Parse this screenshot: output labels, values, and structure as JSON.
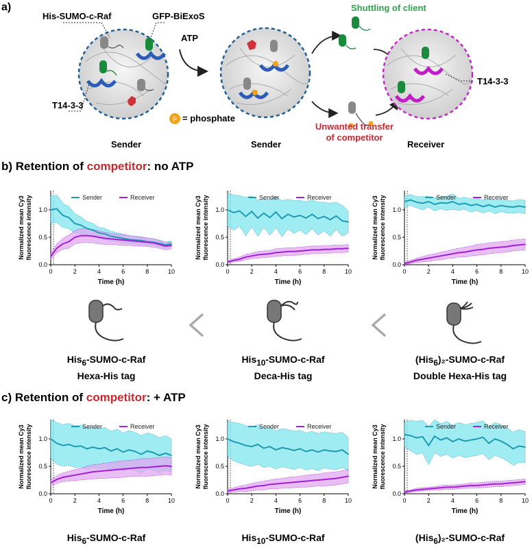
{
  "panel_a": {
    "letter": "a)",
    "label_his_sumo": "His-SUMO-c-Raf",
    "label_gfp": "GFP-BiExoS",
    "label_t1433_left": "T14-3-3",
    "label_atp": "ATP",
    "label_phosphate": "= phosphate",
    "phosphate_symbol": "P",
    "label_sender1": "Sender",
    "label_sender2": "Sender",
    "label_receiver": "Receiver",
    "label_shuttling": "Shuttling of client",
    "label_unwanted_1": "Unwanted transfer",
    "label_unwanted_2": "of competitor",
    "label_t1433_right": "T14-3-3",
    "colors": {
      "sender_ring": "#1f5f96",
      "receiver_ring": "#c528c9",
      "client": "#1a8a3c",
      "competitor": "#7a7a7a",
      "chain_purple": "#c11fc6"
    }
  },
  "section_b": {
    "letter": "b)",
    "title_prefix": "Retention of ",
    "title_highlight": "competitor",
    "title_suffix": ": no ATP"
  },
  "section_c": {
    "letter": "c)",
    "title_prefix": "Retention of ",
    "title_highlight": "competitor",
    "title_suffix": ": + ATP"
  },
  "constructs": [
    {
      "name_main": "His",
      "name_sub": "6",
      "name_rest": "-SUMO-c-Raf",
      "tag": "Hexa-His tag"
    },
    {
      "name_main": "His",
      "name_sub": "10",
      "name_rest": "-SUMO-c-Raf",
      "tag": "Deca-His tag"
    },
    {
      "name_main": "(His",
      "name_sub": "6",
      "name_rest": ")₂-SUMO-c-Raf",
      "tag": "Double Hexa-His tag"
    }
  ],
  "bottom_captions": [
    {
      "name_main": "His",
      "name_sub": "6",
      "name_rest": "-SUMO-c-Raf"
    },
    {
      "name_main": "His",
      "name_sub": "10",
      "name_rest": "-SUMO-c-Raf"
    },
    {
      "name_main": "(His",
      "name_sub": "6",
      "name_rest": ")₂-SUMO-c-Raf"
    }
  ],
  "chart_common": {
    "ylabel_line1": "Normalized mean Cy3",
    "ylabel_line2": "fluorescence intensity",
    "xlabel": "Time (h)",
    "legend_sender": "Sender",
    "legend_receiver": "Receiver",
    "xticks": [
      "0",
      "2",
      "4",
      "6",
      "8",
      "10"
    ],
    "yticks": [
      "0.0",
      "0.5",
      "1.0"
    ],
    "colors": {
      "sender": "#1f9bb0",
      "sender_band": "#7fe6ef",
      "receiver": "#a11fd6",
      "receiver_band": "#e0a8f0"
    }
  },
  "chart_data": [
    {
      "type": "line",
      "title": "b) His6-SUMO-c-Raf, no ATP",
      "xlabel": "Time (h)",
      "ylabel": "Normalized mean Cy3 fluorescence intensity",
      "xlim": [
        0,
        10
      ],
      "ylim": [
        0,
        1.35
      ],
      "x": [
        0,
        0.5,
        1,
        1.5,
        2,
        2.5,
        3,
        3.5,
        4,
        4.5,
        5,
        5.5,
        6,
        6.5,
        7,
        7.5,
        8,
        8.5,
        9,
        9.5,
        10
      ],
      "series": [
        {
          "name": "Sender",
          "values": [
            1.0,
            1.02,
            0.9,
            0.86,
            0.75,
            0.72,
            0.66,
            0.63,
            0.58,
            0.56,
            0.52,
            0.5,
            0.48,
            0.46,
            0.45,
            0.44,
            0.42,
            0.41,
            0.39,
            0.36,
            0.38
          ],
          "band": [
            0.25,
            0.25,
            0.22,
            0.2,
            0.18,
            0.15,
            0.13,
            0.12,
            0.1,
            0.1,
            0.09,
            0.08,
            0.08,
            0.07,
            0.07,
            0.07,
            0.06,
            0.06,
            0.06,
            0.05,
            0.05
          ]
        },
        {
          "name": "Receiver",
          "values": [
            0.15,
            0.3,
            0.38,
            0.42,
            0.5,
            0.53,
            0.53,
            0.52,
            0.5,
            0.48,
            0.47,
            0.46,
            0.45,
            0.44,
            0.43,
            0.42,
            0.41,
            0.4,
            0.37,
            0.34,
            0.35
          ],
          "band": [
            0.05,
            0.08,
            0.1,
            0.12,
            0.12,
            0.13,
            0.13,
            0.12,
            0.12,
            0.11,
            0.1,
            0.1,
            0.1,
            0.09,
            0.09,
            0.08,
            0.08,
            0.08,
            0.07,
            0.07,
            0.06
          ]
        }
      ]
    },
    {
      "type": "line",
      "title": "b) His10-SUMO-c-Raf, no ATP",
      "xlabel": "Time (h)",
      "ylabel": "Normalized mean Cy3 fluorescence intensity",
      "xlim": [
        0,
        10
      ],
      "ylim": [
        0,
        1.35
      ],
      "x": [
        0,
        0.5,
        1,
        1.5,
        2,
        2.5,
        3,
        3.5,
        4,
        4.5,
        5,
        5.5,
        6,
        6.5,
        7,
        7.5,
        8,
        8.5,
        9,
        9.5,
        10
      ],
      "series": [
        {
          "name": "Sender",
          "values": [
            1.0,
            0.95,
            0.98,
            0.88,
            0.97,
            0.85,
            0.94,
            0.86,
            0.96,
            0.84,
            0.92,
            0.87,
            0.9,
            0.85,
            0.92,
            0.84,
            0.88,
            0.82,
            0.89,
            0.8,
            0.78
          ],
          "band": [
            0.3,
            0.32,
            0.28,
            0.35,
            0.28,
            0.33,
            0.26,
            0.32,
            0.28,
            0.33,
            0.27,
            0.3,
            0.27,
            0.3,
            0.26,
            0.3,
            0.26,
            0.3,
            0.25,
            0.28,
            0.2
          ]
        },
        {
          "name": "Receiver",
          "values": [
            0.05,
            0.08,
            0.1,
            0.14,
            0.16,
            0.18,
            0.19,
            0.2,
            0.22,
            0.23,
            0.24,
            0.24,
            0.25,
            0.26,
            0.27,
            0.27,
            0.28,
            0.28,
            0.29,
            0.29,
            0.3
          ],
          "band": [
            0.02,
            0.03,
            0.04,
            0.05,
            0.05,
            0.06,
            0.06,
            0.06,
            0.07,
            0.07,
            0.07,
            0.07,
            0.07,
            0.07,
            0.07,
            0.07,
            0.07,
            0.07,
            0.07,
            0.07,
            0.07
          ]
        }
      ]
    },
    {
      "type": "line",
      "title": "b) (His6)2-SUMO-c-Raf, no ATP",
      "xlabel": "Time (h)",
      "ylabel": "Normalized mean Cy3 fluorescence intensity",
      "xlim": [
        0,
        10
      ],
      "ylim": [
        0,
        1.35
      ],
      "x": [
        0,
        0.5,
        1,
        1.5,
        2,
        2.5,
        3,
        3.5,
        4,
        4.5,
        5,
        5.5,
        6,
        6.5,
        7,
        7.5,
        8,
        8.5,
        9,
        9.5,
        10
      ],
      "series": [
        {
          "name": "Sender",
          "values": [
            1.15,
            1.18,
            1.14,
            1.12,
            1.15,
            1.1,
            1.13,
            1.12,
            1.15,
            1.1,
            1.12,
            1.08,
            1.1,
            1.06,
            1.09,
            1.05,
            1.08,
            1.06,
            1.05,
            1.07,
            1.05
          ],
          "band": [
            0.1,
            0.1,
            0.1,
            0.12,
            0.1,
            0.12,
            0.11,
            0.13,
            0.14,
            0.11,
            0.11,
            0.12,
            0.11,
            0.12,
            0.11,
            0.12,
            0.11,
            0.12,
            0.11,
            0.12,
            0.12
          ]
        },
        {
          "name": "Receiver",
          "values": [
            0.02,
            0.05,
            0.08,
            0.1,
            0.12,
            0.14,
            0.16,
            0.18,
            0.2,
            0.22,
            0.23,
            0.25,
            0.27,
            0.28,
            0.3,
            0.31,
            0.32,
            0.33,
            0.35,
            0.36,
            0.37
          ],
          "band": [
            0.02,
            0.03,
            0.04,
            0.05,
            0.06,
            0.06,
            0.07,
            0.07,
            0.08,
            0.08,
            0.09,
            0.09,
            0.1,
            0.1,
            0.1,
            0.1,
            0.1,
            0.1,
            0.1,
            0.1,
            0.1
          ]
        }
      ]
    },
    {
      "type": "line",
      "title": "c) His6-SUMO-c-Raf, + ATP",
      "xlabel": "Time (h)",
      "ylabel": "Normalized mean Cy3 fluorescence intensity",
      "xlim": [
        0,
        10
      ],
      "ylim": [
        0,
        1.35
      ],
      "x": [
        0,
        0.5,
        1,
        1.5,
        2,
        2.5,
        3,
        3.5,
        4,
        4.5,
        5,
        5.5,
        6,
        6.5,
        7,
        7.5,
        8,
        8.5,
        9,
        9.5,
        10
      ],
      "series": [
        {
          "name": "Sender",
          "values": [
            1.0,
            0.92,
            0.88,
            0.9,
            0.86,
            0.87,
            0.82,
            0.85,
            0.82,
            0.84,
            0.78,
            0.82,
            0.76,
            0.8,
            0.77,
            0.72,
            0.78,
            0.75,
            0.7,
            0.74,
            0.7
          ],
          "band": [
            0.35,
            0.38,
            0.38,
            0.38,
            0.38,
            0.38,
            0.38,
            0.37,
            0.37,
            0.37,
            0.36,
            0.36,
            0.35,
            0.35,
            0.35,
            0.34,
            0.33,
            0.33,
            0.32,
            0.32,
            0.3
          ]
        },
        {
          "name": "Receiver",
          "values": [
            0.2,
            0.26,
            0.3,
            0.32,
            0.34,
            0.36,
            0.38,
            0.4,
            0.41,
            0.42,
            0.43,
            0.44,
            0.45,
            0.46,
            0.47,
            0.48,
            0.48,
            0.49,
            0.5,
            0.51,
            0.5
          ],
          "band": [
            0.05,
            0.07,
            0.08,
            0.09,
            0.1,
            0.11,
            0.12,
            0.13,
            0.13,
            0.14,
            0.14,
            0.15,
            0.15,
            0.15,
            0.15,
            0.16,
            0.16,
            0.16,
            0.16,
            0.16,
            0.16
          ]
        }
      ]
    },
    {
      "type": "line",
      "title": "c) His10-SUMO-c-Raf, + ATP",
      "xlabel": "Time (h)",
      "ylabel": "Normalized mean Cy3 fluorescence intensity",
      "xlim": [
        0,
        10
      ],
      "ylim": [
        0,
        1.35
      ],
      "x": [
        0,
        0.5,
        1,
        1.5,
        2,
        2.5,
        3,
        3.5,
        4,
        4.5,
        5,
        5.5,
        6,
        6.5,
        7,
        7.5,
        8,
        8.5,
        9,
        9.5,
        10
      ],
      "series": [
        {
          "name": "Sender",
          "values": [
            1.0,
            0.95,
            0.92,
            0.88,
            0.86,
            0.9,
            0.83,
            0.86,
            0.8,
            0.84,
            0.82,
            0.79,
            0.82,
            0.77,
            0.8,
            0.76,
            0.8,
            0.78,
            0.77,
            0.8,
            0.72
          ],
          "band": [
            0.32,
            0.35,
            0.36,
            0.36,
            0.36,
            0.36,
            0.35,
            0.36,
            0.35,
            0.35,
            0.35,
            0.35,
            0.34,
            0.34,
            0.34,
            0.34,
            0.33,
            0.33,
            0.33,
            0.32,
            0.3
          ]
        },
        {
          "name": "Receiver",
          "values": [
            0.05,
            0.07,
            0.09,
            0.1,
            0.12,
            0.14,
            0.15,
            0.17,
            0.18,
            0.19,
            0.2,
            0.21,
            0.22,
            0.23,
            0.24,
            0.25,
            0.26,
            0.27,
            0.28,
            0.3,
            0.32
          ],
          "band": [
            0.03,
            0.04,
            0.05,
            0.06,
            0.07,
            0.07,
            0.08,
            0.08,
            0.09,
            0.09,
            0.1,
            0.1,
            0.1,
            0.11,
            0.11,
            0.11,
            0.12,
            0.12,
            0.12,
            0.12,
            0.12
          ]
        }
      ]
    },
    {
      "type": "line",
      "title": "c) (His6)2-SUMO-c-Raf, + ATP",
      "xlabel": "Time (h)",
      "ylabel": "Normalized mean Cy3 fluorescence intensity",
      "xlim": [
        0,
        10
      ],
      "ylim": [
        0,
        1.35
      ],
      "x": [
        0,
        0.5,
        1,
        1.5,
        2,
        2.5,
        3,
        3.5,
        4,
        4.5,
        5,
        5.5,
        6,
        6.5,
        7,
        7.5,
        8,
        8.5,
        9,
        9.5,
        10
      ],
      "series": [
        {
          "name": "Sender",
          "values": [
            1.08,
            1.06,
            1.02,
            1.04,
            0.88,
            1.05,
            0.98,
            1.02,
            0.95,
            1.0,
            0.96,
            0.98,
            1.0,
            1.03,
            0.92,
            1.0,
            0.96,
            0.9,
            0.82,
            0.87,
            0.85
          ],
          "band": [
            0.22,
            0.28,
            0.3,
            0.3,
            0.35,
            0.3,
            0.3,
            0.3,
            0.3,
            0.3,
            0.3,
            0.3,
            0.3,
            0.3,
            0.3,
            0.3,
            0.3,
            0.3,
            0.3,
            0.3,
            0.28
          ]
        },
        {
          "name": "Receiver",
          "values": [
            0.03,
            0.05,
            0.07,
            0.08,
            0.09,
            0.1,
            0.11,
            0.12,
            0.12,
            0.13,
            0.14,
            0.15,
            0.15,
            0.16,
            0.17,
            0.18,
            0.18,
            0.19,
            0.2,
            0.21,
            0.22
          ],
          "band": [
            0.02,
            0.02,
            0.03,
            0.03,
            0.03,
            0.03,
            0.04,
            0.04,
            0.04,
            0.04,
            0.04,
            0.05,
            0.05,
            0.05,
            0.05,
            0.05,
            0.05,
            0.05,
            0.05,
            0.05,
            0.05
          ]
        }
      ]
    }
  ]
}
